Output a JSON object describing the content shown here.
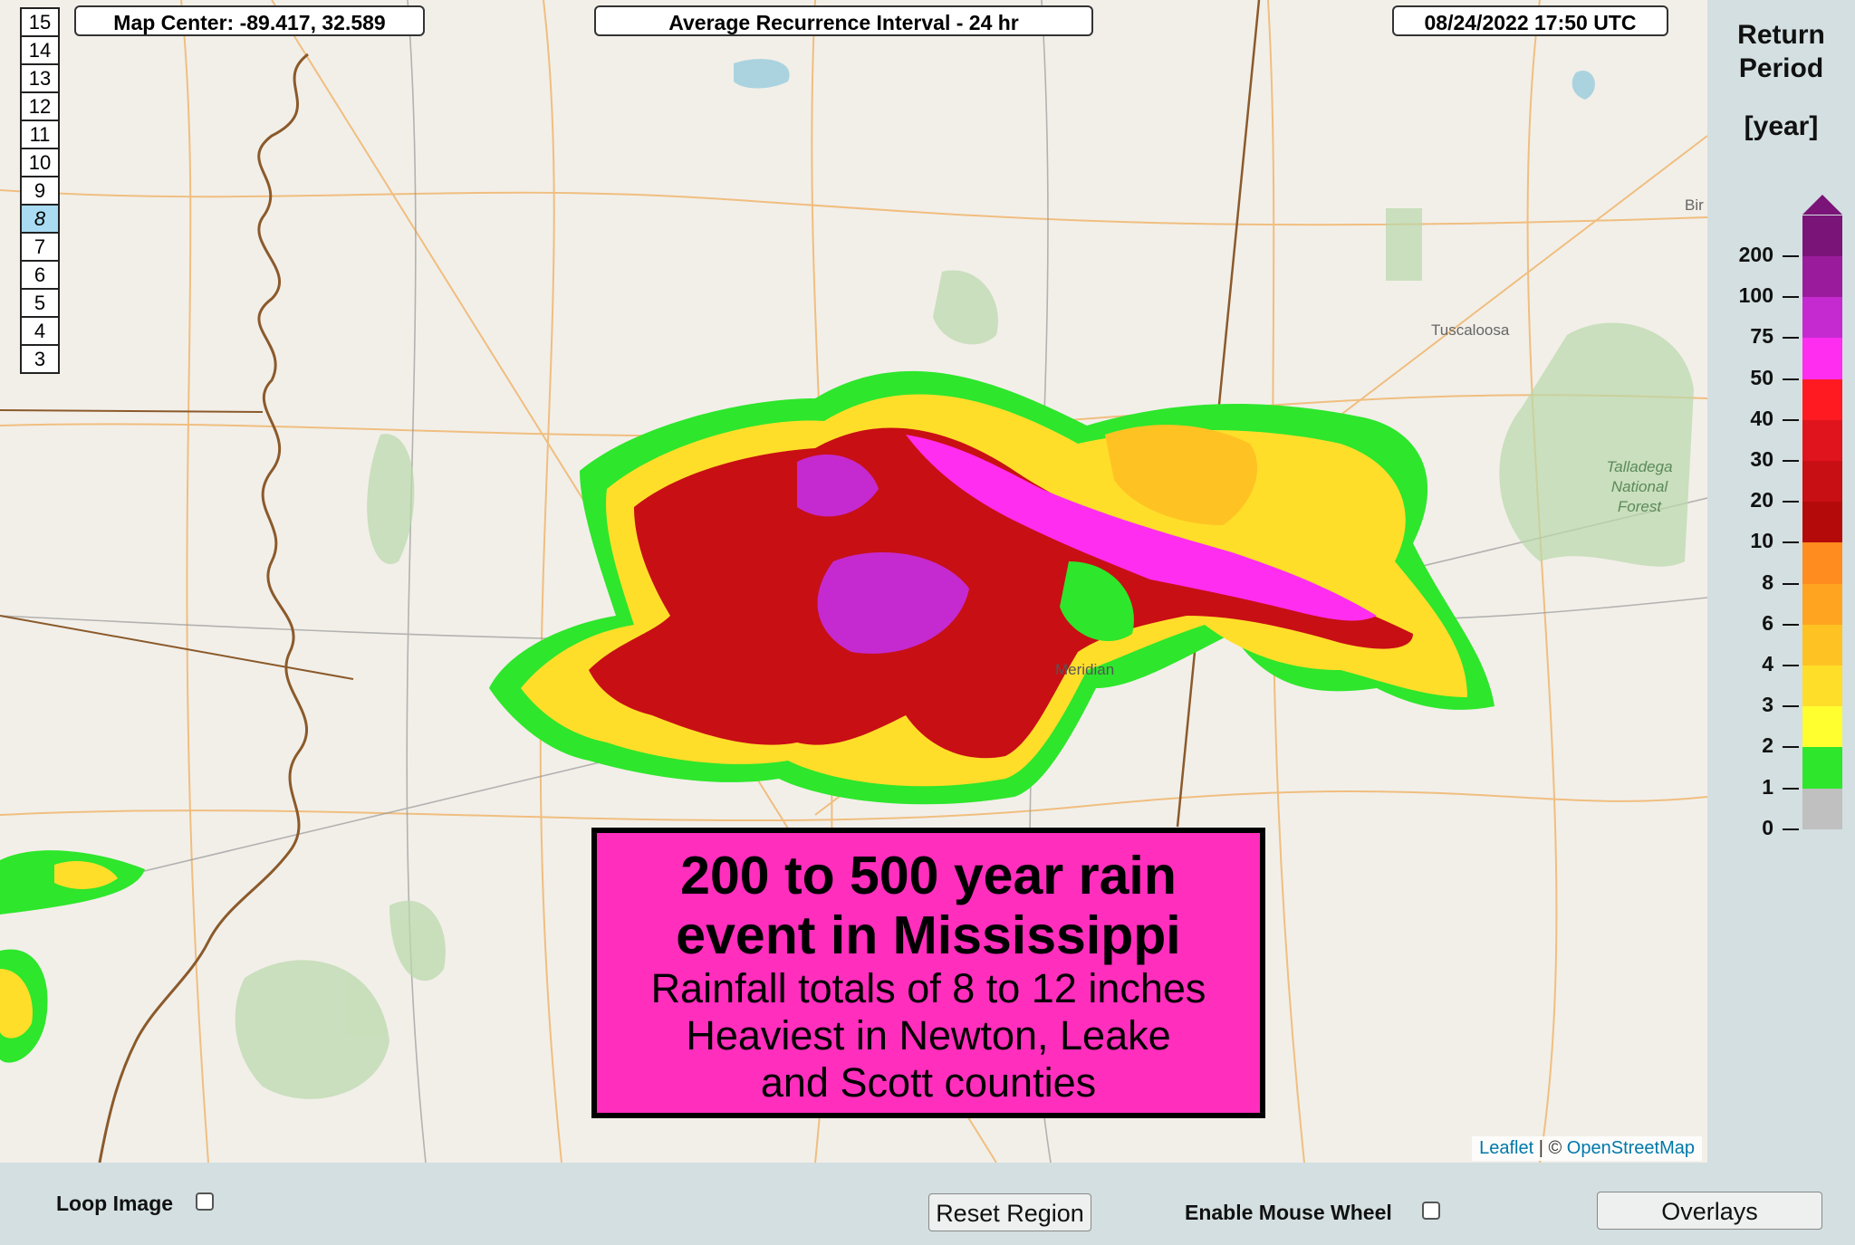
{
  "map": {
    "center_label": "Map Center: -89.417, 32.589",
    "product_label": "Average Recurrence Interval - 24 hr",
    "datetime_label": "08/24/2022   17:50 UTC",
    "place_labels": {
      "tuscaloosa": "Tuscaloosa",
      "meridian": "Meridian",
      "talladega": "Talladega National Forest",
      "birmingham_partial": "Bir"
    },
    "zoom_levels": [
      "15",
      "14",
      "13",
      "12",
      "11",
      "10",
      "9",
      "8",
      "7",
      "6",
      "5",
      "4",
      "3"
    ],
    "active_zoom": "8"
  },
  "callout": {
    "line1": "200 to 500 year rain",
    "line2": "event in Mississippi",
    "line3": "Rainfall totals of 8 to 12 inches",
    "line4": "Heaviest in Newton,  Leake",
    "line5": "and Scott counties"
  },
  "attribution": {
    "leaflet": "Leaflet",
    "separator": " | © ",
    "osm": "OpenStreetMap"
  },
  "legend": {
    "title_line1": "Return",
    "title_line2": "Period",
    "units": "[year]",
    "ticks": [
      "200",
      "100",
      "75",
      "50",
      "40",
      "30",
      "20",
      "10",
      "8",
      "6",
      "4",
      "3",
      "2",
      "1",
      "0"
    ],
    "colors": [
      "#7a1478",
      "#9a1c9c",
      "#c52ad0",
      "#ff2df0",
      "#ff1a22",
      "#e0141c",
      "#c80f14",
      "#b50a0a",
      "#ff8c1e",
      "#ffa421",
      "#ffc223",
      "#ffde2a",
      "#ffff2f",
      "#2ee62c",
      "#c0c0c0"
    ]
  },
  "controls": {
    "loop_label": "Loop Image",
    "reset_label": "Reset Region",
    "wheel_label": "Enable Mouse Wheel",
    "overlays_label": "Overlays"
  }
}
